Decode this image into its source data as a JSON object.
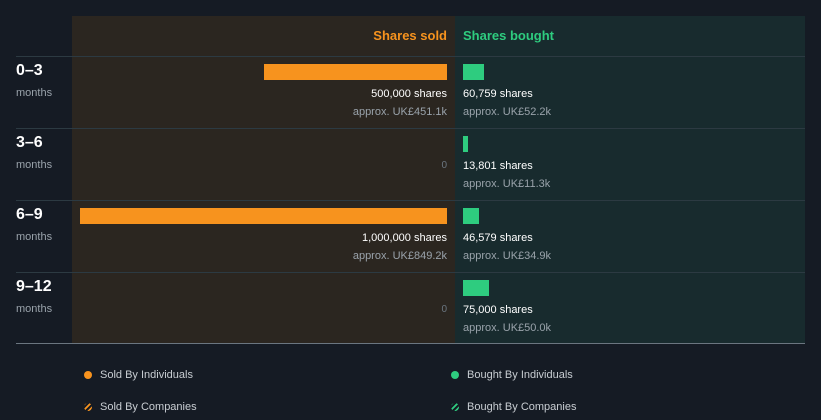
{
  "chart_data": {
    "type": "bar",
    "orientation": "horizontal",
    "headers": {
      "sold": "Shares sold",
      "bought": "Shares bought"
    },
    "categories": [
      {
        "label": "0–3",
        "sublabel": "months"
      },
      {
        "label": "3–6",
        "sublabel": "months"
      },
      {
        "label": "6–9",
        "sublabel": "months"
      },
      {
        "label": "9–12",
        "sublabel": "months"
      }
    ],
    "sold_max": 1000000,
    "bought_max": 500000,
    "series": [
      {
        "name": "Shares sold",
        "color": "#f7931e",
        "values": [
          500000,
          0,
          1000000,
          0
        ],
        "share_labels": [
          "500,000 shares",
          "0",
          "1,000,000 shares",
          "0"
        ],
        "approx_labels": [
          "approx. UK£451.1k",
          "",
          "approx. UK£849.2k",
          ""
        ]
      },
      {
        "name": "Shares bought",
        "color": "#2ecc7f",
        "values": [
          60759,
          13801,
          46579,
          75000
        ],
        "share_labels": [
          "60,759 shares",
          "13,801 shares",
          "46,579 shares",
          "75,000 shares"
        ],
        "approx_labels": [
          "approx. UK£52.2k",
          "approx. UK£11.3k",
          "approx. UK£34.9k",
          "approx. UK£50.0k"
        ]
      }
    ],
    "legend": [
      {
        "label": "Sold By Individuals",
        "color": "#f7931e",
        "style": "solid"
      },
      {
        "label": "Bought By Individuals",
        "color": "#2ecc7f",
        "style": "solid"
      },
      {
        "label": "Sold By Companies",
        "color": "#f7931e",
        "style": "hatched"
      },
      {
        "label": "Bought By Companies",
        "color": "#2ecc7f",
        "style": "hatched"
      }
    ]
  }
}
